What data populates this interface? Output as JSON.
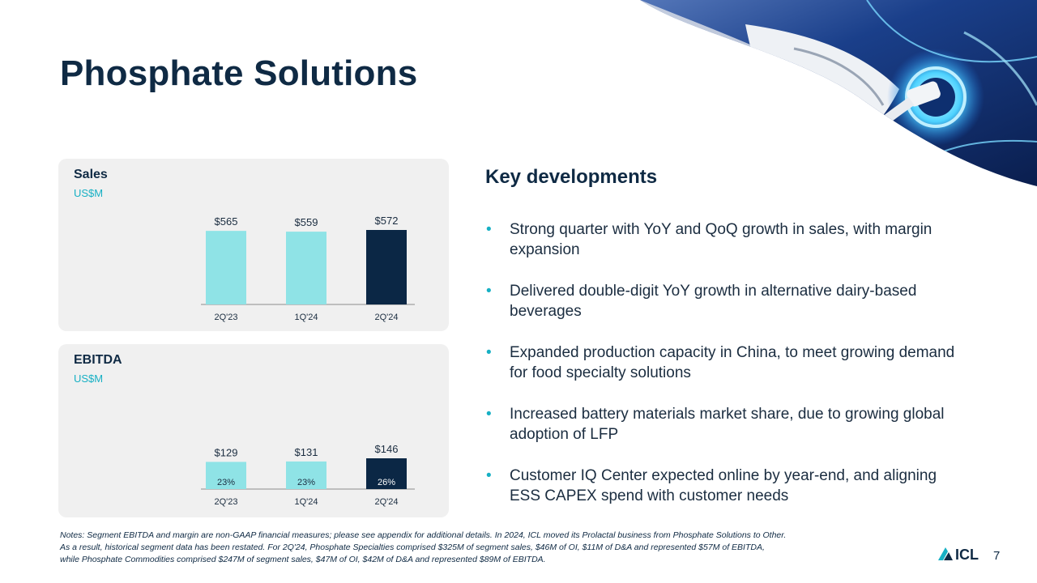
{
  "slide": {
    "title": "Phosphate Solutions",
    "page_number": "7"
  },
  "colors": {
    "navy": "#0f2a44",
    "accent_light": "#8fe3e6",
    "accent_dark": "#0b2745",
    "bullet": "#17b0c4",
    "panel_bg": "#f0f0f0"
  },
  "hero_image": {
    "icon": "ev-charging-photo"
  },
  "sales_panel": {
    "title": "Sales",
    "unit": "US$M"
  },
  "ebitda_panel": {
    "title": "EBITDA",
    "unit": "US$M"
  },
  "chart_data": [
    {
      "type": "bar",
      "title": "Sales",
      "ylabel": "US$M",
      "categories": [
        "2Q'23",
        "1Q'24",
        "2Q'24"
      ],
      "values": [
        565,
        559,
        572
      ],
      "value_labels": [
        "$565",
        "$559",
        "$572"
      ],
      "highlight_index": 2
    },
    {
      "type": "bar",
      "title": "EBITDA",
      "ylabel": "US$M",
      "categories": [
        "2Q'23",
        "1Q'24",
        "2Q'24"
      ],
      "values": [
        129,
        131,
        146
      ],
      "value_labels": [
        "$129",
        "$131",
        "$146"
      ],
      "margin_labels": [
        "23%",
        "23%",
        "26%"
      ],
      "highlight_index": 2
    }
  ],
  "key_developments": {
    "title": "Key developments",
    "bullet_glyph": "•",
    "items": [
      "Strong quarter with YoY and QoQ growth in sales, with margin expansion",
      "Delivered double-digit YoY growth in alternative dairy-based beverages",
      "Expanded production capacity in China, to meet growing demand for food specialty solutions",
      "Increased battery materials market share, due to growing global adoption of LFP",
      "Customer IQ Center expected online by year-end, and aligning ESS CAPEX spend with customer needs"
    ]
  },
  "notes": {
    "line1": "Notes: Segment EBITDA and margin are non-GAAP financial measures; please see appendix for additional details. In 2024, ICL moved its Prolactal business from Phosphate Solutions to Other.",
    "line2": "As a result, historical segment data has been restated. For 2Q'24, Phosphate Specialties comprised $325M of segment sales, $46M of OI, $11M of D&A and represented $57M of EBITDA,",
    "line3": "while Phosphate Commodities comprised $247M of segment sales, $47M of OI, $42M of D&A and represented $89M of EBITDA."
  },
  "logo": {
    "text": "ICL",
    "icon": "icl-logo-icon"
  }
}
